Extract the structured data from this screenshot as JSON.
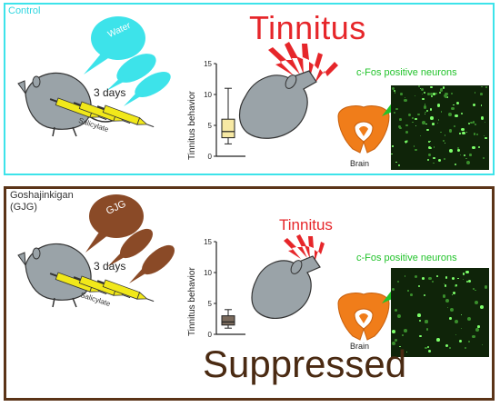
{
  "colors": {
    "control_border": "#3de3ea",
    "gjg_border": "#5b3418",
    "tinnitus_red": "#e6262a",
    "neuron_green": "#22c32b",
    "brain_orange": "#f07d1a",
    "rat_gray": "#9aa3a8",
    "syringe_yellow": "#f1e81a",
    "water_cyan": "#3de3ea",
    "gjg_brown": "#8a4a27"
  },
  "control": {
    "label": "Control",
    "bubble": "Water",
    "days": "3 days",
    "syringe": "Salicylate",
    "tinnitus": "Tinnitus",
    "cfos": "c-Fos positive neurons",
    "brain": "Brain",
    "chart": {
      "ylabel": "Tinnitus behavior",
      "ticks": [
        "0",
        "5",
        "10",
        "15"
      ]
    }
  },
  "gjg": {
    "label_line1": "Goshajinkigan",
    "label_line2": "(GJG)",
    "bubble": "GJG",
    "days": "3 days",
    "syringe": "Salicylate",
    "tinnitus": "Tinnitus",
    "cfos": "c-Fos positive neurons",
    "brain": "Brain",
    "result": "Suppressed",
    "chart": {
      "ylabel": "Tinnitus behavior",
      "ticks": [
        "0",
        "5",
        "10",
        "15"
      ]
    }
  },
  "chart_data": [
    {
      "type": "box",
      "ylim": [
        0,
        15
      ],
      "ylabel": "Tinnitus behavior",
      "box": {
        "whisker_low": 2,
        "q1": 3,
        "median": 4,
        "q3": 6,
        "whisker_high": 11,
        "fill": "#f7e9a4"
      }
    },
    {
      "type": "box",
      "ylim": [
        0,
        15
      ],
      "ylabel": "Tinnitus behavior",
      "box": {
        "whisker_low": 1,
        "q1": 1.5,
        "median": 2,
        "q3": 3,
        "whisker_high": 4,
        "fill": "#7a6a5c"
      }
    }
  ]
}
